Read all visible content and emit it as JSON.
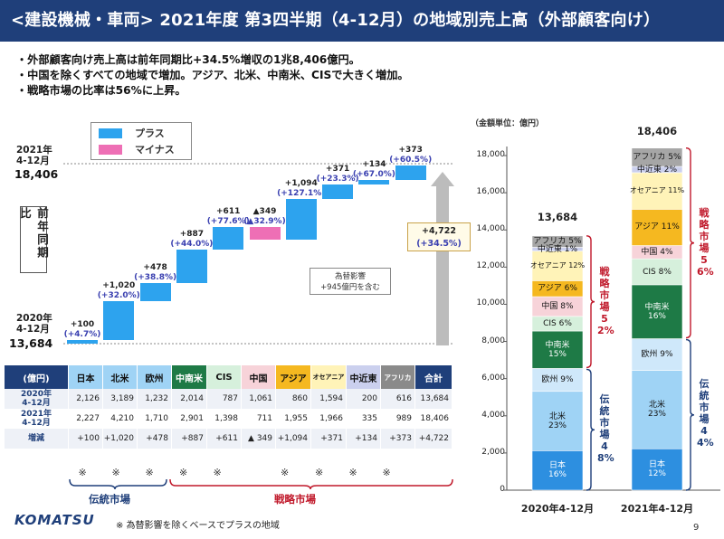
{
  "title": "<建設機械・車両> 2021年度 第3四半期（4-12月）の地域別売上高（外部顧客向け）",
  "bullets": [
    "・外部顧客向け売上高は前年同期比+34.5%増収の1兆8,406億円。",
    "・中国を除くすべての地域で増加。アジア、北米、中南米、CISで大きく増加。",
    "・戦略市場の比率は56%に上昇。"
  ],
  "legend": {
    "plus": "プラス",
    "minus": "マイナス"
  },
  "waterfall": {
    "current_period": "2021年\n4-12月",
    "current_value": "18,406",
    "prior_label": "前年同期比",
    "prior_period": "2020年\n4-12月",
    "prior_value": "13,684",
    "steps": [
      {
        "region": "日本",
        "value": "+100",
        "pct": "(+4.7%)",
        "delta": 100,
        "sign": "plus"
      },
      {
        "region": "北米",
        "value": "+1,020",
        "pct": "(+32.0%)",
        "delta": 1020,
        "sign": "plus"
      },
      {
        "region": "欧州",
        "value": "+478",
        "pct": "(+38.8%)",
        "delta": 478,
        "sign": "plus"
      },
      {
        "region": "中南米",
        "value": "+887",
        "pct": "(+44.0%)",
        "delta": 887,
        "sign": "plus"
      },
      {
        "region": "CIS",
        "value": "+611",
        "pct": "(+77.6%)",
        "delta": 611,
        "sign": "plus"
      },
      {
        "region": "中国",
        "value": "▲349",
        "pct": "(▲32.9%)",
        "delta": -349,
        "sign": "minus"
      },
      {
        "region": "アジア",
        "value": "+1,094",
        "pct": "(+127.1%)",
        "delta": 1094,
        "sign": "plus"
      },
      {
        "region": "オセアニア",
        "value": "+371",
        "pct": "(+23.3%)",
        "delta": 371,
        "sign": "plus"
      },
      {
        "region": "中近東",
        "value": "+134",
        "pct": "(+67.0%)",
        "delta": 134,
        "sign": "plus"
      },
      {
        "region": "アフリカ",
        "value": "+373",
        "pct": "(+60.5%)",
        "delta": 373,
        "sign": "plus"
      }
    ],
    "total_change": "+4,722",
    "total_pct": "(+34.5%)",
    "fx_note": "為替影響\n+945億円を含む"
  },
  "table": {
    "unit_header": "(億円)",
    "headers": [
      "日本",
      "北米",
      "欧州",
      "中南米",
      "CIS",
      "中国",
      "アジア",
      "オセアニア",
      "中近東",
      "アフリカ",
      "合計"
    ],
    "header_colors": [
      "#9fd3f5",
      "#9fd3f5",
      "#9fd3f5",
      "#1e7a46",
      "#d6f0dc",
      "#f7d3d9",
      "#f5b820",
      "#fff3b8",
      "#cbd0ee",
      "#8a8a8a",
      "#1f3f7a"
    ],
    "header_text_colors": [
      "#111",
      "#111",
      "#111",
      "#ffffff",
      "#111",
      "#111",
      "#111",
      "#111",
      "#111",
      "#ffffff",
      "#ffffff"
    ],
    "rows": [
      {
        "label": "2020年\n4-12月",
        "values": [
          "2,126",
          "3,189",
          "1,232",
          "2,014",
          "787",
          "1,061",
          "860",
          "1,594",
          "200",
          "616",
          "13,684"
        ]
      },
      {
        "label": "2021年\n4-12月",
        "values": [
          "2,227",
          "4,210",
          "1,710",
          "2,901",
          "1,398",
          "711",
          "1,955",
          "1,966",
          "335",
          "989",
          "18,406"
        ]
      },
      {
        "label": "増減",
        "values": [
          "+100",
          "+1,020",
          "+478",
          "+887",
          "+611",
          "▲ 349",
          "+1,094",
          "+371",
          "+134",
          "+373",
          "+4,722"
        ]
      }
    ],
    "marks": [
      "※",
      "※",
      "※",
      "※",
      "※",
      "",
      "※",
      "※",
      "※",
      "※"
    ],
    "traditional_label": "伝統市場",
    "strategic_label": "戦略市場",
    "footnote": "※ 為替影響を除くベースでプラスの地域"
  },
  "chart_data": {
    "type": "bar",
    "stacked": true,
    "unit_label": "（金額単位：億円）",
    "categories": [
      "2020年4-12月",
      "2021年4-12月"
    ],
    "totals": [
      "13,684",
      "18,406"
    ],
    "ylim": [
      0,
      18000
    ],
    "yticks": [
      "0",
      "2,000",
      "4,000",
      "6,000",
      "8,000",
      "10,000",
      "12,000",
      "14,000",
      "16,000",
      "18,000"
    ],
    "series": [
      {
        "name": "日本",
        "values": [
          2126,
          2227
        ],
        "labels": [
          "日本\n16%",
          "日本\n12%"
        ],
        "color": "#2d8fe0",
        "text": "#ffffff"
      },
      {
        "name": "北米",
        "values": [
          3189,
          4210
        ],
        "labels": [
          "北米\n23%",
          "北米\n23%"
        ],
        "color": "#9fd3f5",
        "text": "#111"
      },
      {
        "name": "欧州",
        "values": [
          1232,
          1710
        ],
        "labels": [
          "欧州 9%",
          "欧州 9%"
        ],
        "color": "#cfe8fa",
        "text": "#111"
      },
      {
        "name": "中南米",
        "values": [
          2014,
          2901
        ],
        "labels": [
          "中南米\n15%",
          "中南米\n16%"
        ],
        "color": "#1e7a46",
        "text": "#ffffff"
      },
      {
        "name": "CIS",
        "values": [
          787,
          1398
        ],
        "labels": [
          "CIS 6%",
          "CIS 8%"
        ],
        "color": "#d6f0dc",
        "text": "#111"
      },
      {
        "name": "中国",
        "values": [
          1061,
          711
        ],
        "labels": [
          "中国 8%",
          "中国 4%"
        ],
        "color": "#f7d3d9",
        "text": "#111"
      },
      {
        "name": "アジア",
        "values": [
          860,
          1955
        ],
        "labels": [
          "アジア 6%",
          "アジア 11%"
        ],
        "color": "#f5b820",
        "text": "#111"
      },
      {
        "name": "オセアニア",
        "values": [
          1594,
          1966
        ],
        "labels": [
          "オセアニア 12%",
          "オセアニア 11%"
        ],
        "color": "#fff3b8",
        "text": "#111"
      },
      {
        "name": "中近東",
        "values": [
          200,
          335
        ],
        "labels": [
          "中近東 1%",
          "中近東 2%"
        ],
        "color": "#cbd0ee",
        "text": "#111"
      },
      {
        "name": "アフリカ",
        "values": [
          616,
          989
        ],
        "labels": [
          "アフリカ 5%",
          "アフリカ 5%"
        ],
        "color": "#a6a6a6",
        "text": "#111"
      }
    ],
    "group_labels": {
      "traditional": [
        "伝統市場48%",
        "伝統市場44%"
      ],
      "strategic": [
        "戦略市場52%",
        "戦略市場56%"
      ]
    }
  },
  "footer": {
    "logo": "KOMATSU",
    "page": "9"
  },
  "colors": {
    "navy": "#1f3f7a",
    "plus": "#2da3ee",
    "minus": "#ee6fb5",
    "traditional": "#1f3f7a",
    "strategic": "#c0182a"
  }
}
